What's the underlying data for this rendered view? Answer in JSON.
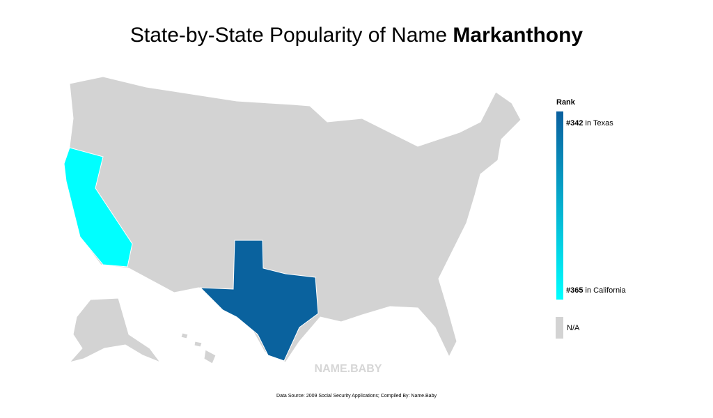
{
  "header": {
    "title_prefix": "State-by-State Popularity of Name ",
    "title_name": "Markanthony"
  },
  "legend": {
    "title": "Rank",
    "items": [
      {
        "rank": "#342",
        "label": " in Texas"
      },
      {
        "rank": "#365",
        "label": " in California"
      }
    ],
    "na": "N/A"
  },
  "watermark": "NAME.BABY",
  "footer": "Data Source: 2009 Social Security Applications; Compiled By: Name.Baby"
}
